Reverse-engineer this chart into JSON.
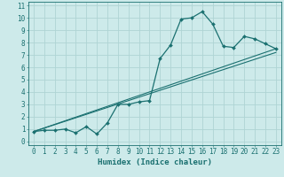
{
  "xlabel": "Humidex (Indice chaleur)",
  "ylabel": "",
  "background_color": "#cdeaea",
  "grid_color": "#afd4d4",
  "line_color": "#1a7070",
  "xlim": [
    -0.5,
    23.5
  ],
  "ylim": [
    -0.3,
    11.3
  ],
  "xticks": [
    0,
    1,
    2,
    3,
    4,
    5,
    6,
    7,
    8,
    9,
    10,
    11,
    12,
    13,
    14,
    15,
    16,
    17,
    18,
    19,
    20,
    21,
    22,
    23
  ],
  "yticks": [
    0,
    1,
    2,
    3,
    4,
    5,
    6,
    7,
    8,
    9,
    10,
    11
  ],
  "curve1_x": [
    0,
    1,
    2,
    3,
    4,
    5,
    6,
    7,
    8,
    9,
    10,
    11,
    12,
    13,
    14,
    15,
    16,
    17,
    18,
    19,
    20,
    21,
    22,
    23
  ],
  "curve1_y": [
    0.8,
    0.9,
    0.9,
    1.0,
    0.7,
    1.2,
    0.6,
    1.5,
    3.0,
    3.0,
    3.2,
    3.3,
    6.7,
    7.8,
    9.9,
    10.0,
    10.5,
    9.5,
    7.7,
    7.6,
    8.5,
    8.3,
    7.9,
    7.5
  ],
  "line1_x": [
    0,
    23
  ],
  "line1_y": [
    0.8,
    7.5
  ],
  "line2_x": [
    0,
    23
  ],
  "line2_y": [
    0.8,
    7.2
  ],
  "font_size_label": 6.5,
  "font_size_tick": 5.5
}
